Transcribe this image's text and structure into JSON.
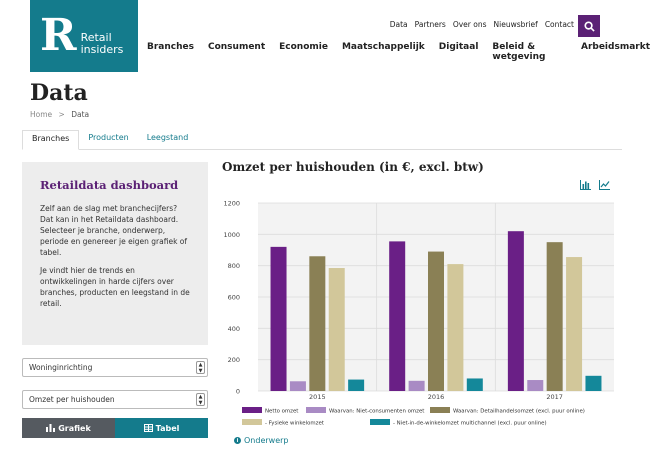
{
  "logo": {
    "letter": "R",
    "line1": "Retail",
    "line2": "insiders"
  },
  "topnav": [
    "Data",
    "Partners",
    "Over ons",
    "Nieuwsbrief",
    "Contact"
  ],
  "mainnav": [
    "Branches",
    "Consument",
    "Economie",
    "Maatschappelijk",
    "Digitaal",
    "Beleid & wetgeving",
    "Arbeidsmarkt"
  ],
  "page": {
    "title": "Data"
  },
  "breadcrumb": {
    "home": "Home",
    "sep": ">",
    "current": "Data"
  },
  "tabs": [
    "Branches",
    "Producten",
    "Leegstand"
  ],
  "sidebar": {
    "title": "Retaildata dashboard",
    "p1": "Zelf aan de slag met branchecijfers? Dat kan in het Retaildata dashboard. Selecteer je branche, onderwerp, periode en genereer je eigen grafiek of tabel.",
    "p2": "Je vindt hier de trends en ontwikkelingen in harde cijfers over branches, producten en leegstand in de retail.",
    "select1": "Woninginrichting",
    "select2": "Omzet per huishouden",
    "btn_chart": "Grafiek",
    "btn_table": "Tabel"
  },
  "info_link": "Onderwerp",
  "colors": {
    "teal": "#147b8c",
    "purple": "#5b2175"
  },
  "chart_data": {
    "type": "bar",
    "title": "Omzet per huishouden (in €, excl. btw)",
    "categories": [
      "2015",
      "2016",
      "2017"
    ],
    "ylim": [
      0,
      1200
    ],
    "yticks": [
      "0",
      "200",
      "400",
      "600",
      "800",
      "1000",
      "1200"
    ],
    "grid": true,
    "legend_position": "bottom",
    "series": [
      {
        "name": "Netto omzet",
        "color": "#6a1f86",
        "values": [
          920,
          955,
          1020
        ]
      },
      {
        "name": "Waarvan: Niet-consumenten omzet",
        "color": "#a98bc4",
        "values": [
          62,
          65,
          70
        ]
      },
      {
        "name": "Waarvan: Detailhandelsomzet (excl. puur online)",
        "color": "#8a8055",
        "values": [
          860,
          890,
          950
        ]
      },
      {
        "name": "- Fysieke winkelomzet",
        "color": "#d2c79a",
        "values": [
          785,
          810,
          855
        ]
      },
      {
        "name": "- Niet-in-de-winkelomzet multichannel (excl. puur online)",
        "color": "#14889a",
        "values": [
          73,
          80,
          97
        ]
      }
    ]
  }
}
